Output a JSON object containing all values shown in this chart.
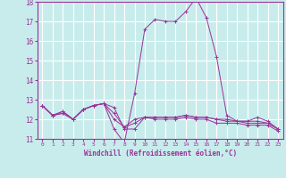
{
  "title": "",
  "xlabel": "Windchill (Refroidissement éolien,°C)",
  "ylabel": "",
  "background_color": "#c8ecec",
  "grid_color": "#ffffff",
  "line_color": "#993399",
  "xlim": [
    -0.5,
    23.5
  ],
  "ylim": [
    11,
    18
  ],
  "yticks": [
    11,
    12,
    13,
    14,
    15,
    16,
    17,
    18
  ],
  "xticks": [
    0,
    1,
    2,
    3,
    4,
    5,
    6,
    7,
    8,
    9,
    10,
    11,
    12,
    13,
    14,
    15,
    16,
    17,
    18,
    19,
    20,
    21,
    22,
    23
  ],
  "series": [
    {
      "x": [
        0,
        1,
        2,
        3,
        4,
        5,
        6,
        7,
        8,
        9,
        10,
        11,
        12,
        13,
        14,
        15,
        16,
        17,
        18,
        19,
        20,
        21,
        22,
        23
      ],
      "y": [
        12.7,
        12.2,
        12.4,
        12.0,
        12.5,
        12.7,
        12.8,
        12.6,
        11.5,
        11.5,
        12.1,
        12.1,
        12.1,
        12.1,
        12.2,
        12.1,
        12.1,
        12.0,
        12.0,
        11.9,
        11.9,
        11.9,
        11.8,
        11.5
      ]
    },
    {
      "x": [
        0,
        1,
        2,
        3,
        4,
        5,
        6,
        7,
        8,
        9,
        10,
        11,
        12,
        13,
        14,
        15,
        16,
        17,
        18,
        19,
        20,
        21,
        22,
        23
      ],
      "y": [
        12.7,
        12.2,
        12.4,
        12.0,
        12.5,
        12.7,
        12.8,
        11.5,
        10.8,
        13.3,
        16.6,
        17.1,
        17.0,
        17.0,
        17.5,
        18.2,
        17.2,
        15.2,
        12.2,
        11.9,
        11.9,
        12.1,
        11.9,
        11.5
      ]
    },
    {
      "x": [
        0,
        1,
        2,
        3,
        4,
        5,
        6,
        7,
        8,
        9,
        10,
        11,
        12,
        13,
        14,
        15,
        16,
        17,
        18,
        19,
        20,
        21,
        22,
        23
      ],
      "y": [
        12.7,
        12.2,
        12.3,
        12.0,
        12.5,
        12.7,
        12.8,
        12.3,
        11.6,
        12.0,
        12.1,
        12.1,
        12.1,
        12.1,
        12.2,
        12.1,
        12.1,
        12.0,
        11.9,
        11.9,
        11.8,
        11.8,
        11.8,
        11.5
      ]
    },
    {
      "x": [
        0,
        1,
        2,
        3,
        4,
        5,
        6,
        7,
        8,
        9,
        10,
        11,
        12,
        13,
        14,
        15,
        16,
        17,
        18,
        19,
        20,
        21,
        22,
        23
      ],
      "y": [
        12.7,
        12.2,
        12.3,
        12.0,
        12.5,
        12.7,
        12.8,
        12.0,
        11.6,
        11.8,
        12.1,
        12.0,
        12.0,
        12.0,
        12.1,
        12.0,
        12.0,
        11.8,
        11.8,
        11.8,
        11.7,
        11.7,
        11.7,
        11.4
      ]
    }
  ]
}
